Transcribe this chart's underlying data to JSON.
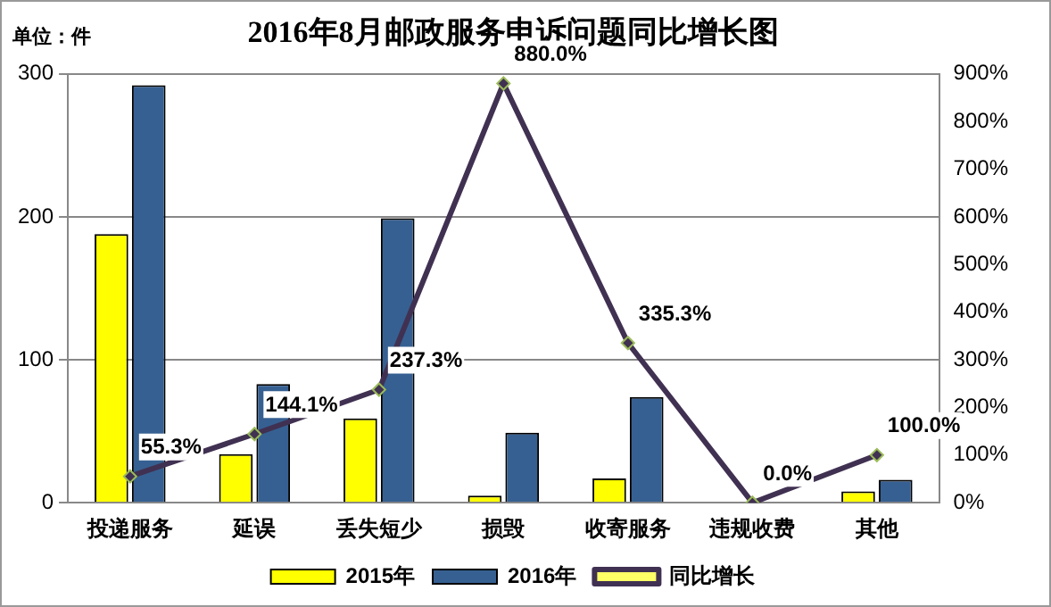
{
  "chart_data": {
    "type": "bar",
    "title": "2016年8月邮政服务申诉问题同比增长图",
    "ylabel": "单位：件",
    "categories": [
      "投递服务",
      "延误",
      "丢失短少",
      "损毁",
      "收寄服务",
      "违规收费",
      "其他"
    ],
    "series": [
      {
        "name": "2015年",
        "color": "#ffff00",
        "values": [
          188,
          34,
          59,
          5,
          17,
          0,
          8
        ]
      },
      {
        "name": "2016年",
        "color": "#366092",
        "values": [
          292,
          83,
          199,
          49,
          74,
          0,
          16
        ]
      },
      {
        "name": "同比增长",
        "type": "line",
        "axis": "y2",
        "color": "#403152",
        "marker": "diamond",
        "values": [
          55.3,
          144.1,
          237.3,
          880.0,
          335.3,
          0.0,
          100.0
        ],
        "value_labels": [
          "55.3%",
          "144.1%",
          "237.3%",
          "880.0%",
          "335.3%",
          "0.0%",
          "100.0%"
        ]
      }
    ],
    "ylim": [
      0,
      300
    ],
    "yticks": [
      0,
      100,
      200,
      300
    ],
    "y2lim": [
      0,
      900
    ],
    "y2ticks": [
      {
        "value": 0,
        "label": "0%"
      },
      {
        "value": 100,
        "label": "100%"
      },
      {
        "value": 200,
        "label": "200%"
      },
      {
        "value": 300,
        "label": "300%"
      },
      {
        "value": 400,
        "label": "400%"
      },
      {
        "value": 500,
        "label": "500%"
      },
      {
        "value": 600,
        "label": "600%"
      },
      {
        "value": 700,
        "label": "700%"
      },
      {
        "value": 800,
        "label": "800%"
      },
      {
        "value": 900,
        "label": "900%"
      }
    ],
    "grid": "y",
    "legend": "bottom"
  }
}
